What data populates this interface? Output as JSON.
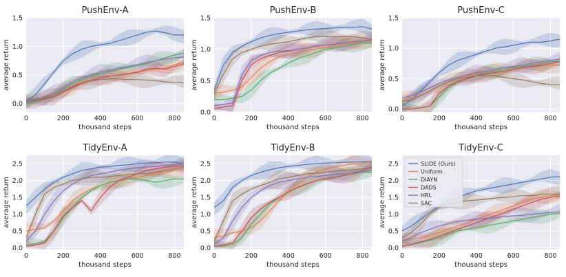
{
  "chart_data": [
    {
      "type": "line",
      "title": "PushEnv-A",
      "xlabel": "thousand steps",
      "ylabel": "average return",
      "xlim": [
        0,
        850
      ],
      "ylim": [
        -0.15,
        1.5
      ],
      "xticks": [
        "0",
        "200",
        "400",
        "600",
        "800"
      ],
      "yticks": [
        "0.0",
        "0.5",
        "1.0",
        "1.5"
      ],
      "x": [
        0,
        50,
        100,
        150,
        200,
        250,
        300,
        350,
        400,
        450,
        500,
        550,
        600,
        650,
        700,
        750,
        800,
        850
      ],
      "series": [
        {
          "name": "SLIDE (Ours)",
          "values": [
            0.05,
            0.15,
            0.35,
            0.55,
            0.75,
            0.87,
            0.95,
            1.0,
            1.03,
            1.05,
            1.1,
            1.15,
            1.2,
            1.25,
            1.27,
            1.24,
            1.2,
            1.2
          ]
        },
        {
          "name": "Uniform",
          "values": [
            0.02,
            0.05,
            0.1,
            0.15,
            0.22,
            0.3,
            0.38,
            0.42,
            0.45,
            0.48,
            0.5,
            0.52,
            0.55,
            0.58,
            0.6,
            0.62,
            0.68,
            0.72
          ]
        },
        {
          "name": "DIAYN",
          "values": [
            0.0,
            0.03,
            0.08,
            0.15,
            0.25,
            0.35,
            0.42,
            0.48,
            0.52,
            0.56,
            0.6,
            0.63,
            0.66,
            0.7,
            0.75,
            0.8,
            0.85,
            0.88
          ]
        },
        {
          "name": "DADS",
          "values": [
            0.02,
            0.05,
            0.08,
            0.12,
            0.2,
            0.28,
            0.35,
            0.4,
            0.45,
            0.48,
            0.5,
            0.52,
            0.55,
            0.6,
            0.62,
            0.6,
            0.65,
            0.7
          ]
        },
        {
          "name": "HRL",
          "values": [
            0.05,
            0.08,
            0.12,
            0.18,
            0.28,
            0.38,
            0.45,
            0.5,
            0.55,
            0.58,
            0.62,
            0.65,
            0.68,
            0.72,
            0.75,
            0.78,
            0.8,
            0.82
          ]
        },
        {
          "name": "SAC",
          "values": [
            0.02,
            0.06,
            0.1,
            0.15,
            0.22,
            0.3,
            0.36,
            0.4,
            0.42,
            0.43,
            0.43,
            0.42,
            0.42,
            0.41,
            0.4,
            0.38,
            0.37,
            0.36
          ]
        }
      ]
    },
    {
      "type": "line",
      "title": "PushEnv-B",
      "xlabel": "thousand steps",
      "ylabel": "average return",
      "xlim": [
        0,
        850
      ],
      "ylim": [
        0,
        1.5
      ],
      "xticks": [
        "0",
        "200",
        "400",
        "600",
        "800"
      ],
      "yticks": [
        "0.0",
        "0.5",
        "1.0",
        "1.5"
      ],
      "x": [
        0,
        50,
        100,
        150,
        200,
        250,
        300,
        350,
        400,
        450,
        500,
        550,
        600,
        650,
        700,
        750,
        800,
        850
      ],
      "series": [
        {
          "name": "SLIDE (Ours)",
          "values": [
            0.35,
            0.75,
            0.95,
            1.05,
            1.12,
            1.18,
            1.22,
            1.25,
            1.27,
            1.29,
            1.31,
            1.32,
            1.33,
            1.34,
            1.35,
            1.35,
            1.36,
            1.32
          ]
        },
        {
          "name": "Uniform",
          "values": [
            0.3,
            0.32,
            0.35,
            0.4,
            0.55,
            0.7,
            0.8,
            0.88,
            0.92,
            0.95,
            0.98,
            1.0,
            1.03,
            1.05,
            1.08,
            1.1,
            1.12,
            1.15
          ]
        },
        {
          "name": "DIAYN",
          "values": [
            0.2,
            0.2,
            0.22,
            0.25,
            0.35,
            0.5,
            0.62,
            0.7,
            0.78,
            0.85,
            0.9,
            0.95,
            1.0,
            1.02,
            1.05,
            1.08,
            1.1,
            1.1
          ]
        },
        {
          "name": "DADS",
          "values": [
            0.05,
            0.08,
            0.1,
            0.5,
            0.75,
            0.85,
            0.9,
            0.95,
            0.97,
            1.0,
            1.02,
            1.05,
            1.07,
            1.08,
            1.1,
            1.12,
            1.13,
            1.15
          ]
        },
        {
          "name": "HRL",
          "values": [
            0.1,
            0.12,
            0.15,
            0.6,
            0.82,
            0.9,
            0.95,
            0.97,
            0.98,
            1.0,
            1.02,
            1.05,
            1.07,
            1.08,
            1.1,
            1.12,
            1.13,
            1.15
          ]
        },
        {
          "name": "SAC",
          "values": [
            0.3,
            0.6,
            0.85,
            0.95,
            1.0,
            1.05,
            1.08,
            1.1,
            1.12,
            1.15,
            1.18,
            1.2,
            1.2,
            1.2,
            1.2,
            1.2,
            1.18,
            1.15
          ]
        }
      ]
    },
    {
      "type": "line",
      "title": "PushEnv-C",
      "xlabel": "thousand steps",
      "ylabel": "average return",
      "xlim": [
        0,
        850
      ],
      "ylim": [
        -0.05,
        1.5
      ],
      "xticks": [
        "0",
        "200",
        "400",
        "600",
        "800"
      ],
      "yticks": [
        "0.0",
        "0.5",
        "1.0",
        "1.5"
      ],
      "x": [
        0,
        50,
        100,
        150,
        200,
        250,
        300,
        350,
        400,
        450,
        500,
        550,
        600,
        650,
        700,
        750,
        800,
        850
      ],
      "series": [
        {
          "name": "SLIDE (Ours)",
          "values": [
            0.05,
            0.15,
            0.3,
            0.45,
            0.6,
            0.72,
            0.8,
            0.85,
            0.9,
            0.95,
            1.0,
            1.02,
            1.05,
            1.08,
            1.1,
            1.1,
            1.12,
            1.15
          ]
        },
        {
          "name": "Uniform",
          "values": [
            0.15,
            0.18,
            0.22,
            0.3,
            0.38,
            0.45,
            0.5,
            0.55,
            0.58,
            0.6,
            0.62,
            0.65,
            0.68,
            0.68,
            0.7,
            0.7,
            0.72,
            0.72
          ]
        },
        {
          "name": "DIAYN",
          "values": [
            0.0,
            0.0,
            0.02,
            0.05,
            0.2,
            0.35,
            0.45,
            0.5,
            0.55,
            0.6,
            0.62,
            0.65,
            0.68,
            0.7,
            0.72,
            0.75,
            0.78,
            0.78
          ]
        },
        {
          "name": "DADS",
          "values": [
            0.0,
            0.0,
            0.02,
            0.05,
            0.25,
            0.38,
            0.45,
            0.5,
            0.55,
            0.58,
            0.6,
            0.62,
            0.65,
            0.68,
            0.7,
            0.72,
            0.75,
            0.78
          ]
        },
        {
          "name": "HRL",
          "values": [
            0.18,
            0.22,
            0.28,
            0.35,
            0.42,
            0.48,
            0.52,
            0.56,
            0.6,
            0.62,
            0.65,
            0.68,
            0.7,
            0.72,
            0.75,
            0.78,
            0.8,
            0.82
          ]
        },
        {
          "name": "SAC",
          "values": [
            0.12,
            0.15,
            0.22,
            0.3,
            0.38,
            0.45,
            0.5,
            0.52,
            0.55,
            0.55,
            0.55,
            0.52,
            0.5,
            0.48,
            0.45,
            0.42,
            0.4,
            0.4
          ]
        }
      ]
    },
    {
      "type": "line",
      "title": "TidyEnv-A",
      "xlabel": "thousand steps",
      "ylabel": "average return",
      "xlim": [
        0,
        850
      ],
      "ylim": [
        -0.05,
        2.75
      ],
      "xticks": [
        "0",
        "200",
        "400",
        "600",
        "800"
      ],
      "yticks": [
        "0.0",
        "0.5",
        "1.0",
        "1.5",
        "2.0",
        "2.5"
      ],
      "x": [
        0,
        50,
        100,
        150,
        200,
        250,
        300,
        350,
        400,
        450,
        500,
        550,
        600,
        650,
        700,
        750,
        800,
        850
      ],
      "series": [
        {
          "name": "SLIDE (Ours)",
          "values": [
            1.25,
            1.5,
            1.75,
            1.95,
            2.1,
            2.2,
            2.3,
            2.35,
            2.4,
            2.42,
            2.45,
            2.47,
            2.5,
            2.52,
            2.53,
            2.55,
            2.55,
            2.5
          ]
        },
        {
          "name": "Uniform",
          "values": [
            0.5,
            0.55,
            0.6,
            0.8,
            1.1,
            1.4,
            1.6,
            1.75,
            1.85,
            1.95,
            2.0,
            2.05,
            2.1,
            2.15,
            2.2,
            2.25,
            2.3,
            2.35
          ]
        },
        {
          "name": "DIAYN",
          "values": [
            0.1,
            0.12,
            0.2,
            0.5,
            0.9,
            1.2,
            1.5,
            1.7,
            1.85,
            1.95,
            2.0,
            2.05,
            2.05,
            2.0,
            1.95,
            2.0,
            2.05,
            2.05
          ]
        },
        {
          "name": "DADS",
          "values": [
            0.05,
            0.08,
            0.15,
            0.5,
            0.95,
            1.2,
            1.4,
            1.1,
            1.5,
            1.8,
            2.0,
            2.1,
            2.2,
            2.3,
            2.35,
            2.4,
            2.42,
            2.45
          ]
        },
        {
          "name": "HRL",
          "values": [
            0.2,
            0.5,
            1.0,
            1.4,
            1.7,
            1.9,
            2.05,
            2.15,
            2.2,
            2.25,
            2.3,
            2.35,
            2.38,
            2.4,
            2.42,
            2.45,
            2.48,
            2.5
          ]
        },
        {
          "name": "SAC",
          "values": [
            0.3,
            1.0,
            1.6,
            1.8,
            1.9,
            2.0,
            2.05,
            2.1,
            2.1,
            2.12,
            2.15,
            2.18,
            2.2,
            2.2,
            2.25,
            2.3,
            2.35,
            2.4
          ]
        }
      ]
    },
    {
      "type": "line",
      "title": "TidyEnv-B",
      "xlabel": "thousand steps",
      "ylabel": "average return",
      "xlim": [
        0,
        850
      ],
      "ylim": [
        -0.05,
        2.75
      ],
      "xticks": [
        "0",
        "200",
        "400",
        "600",
        "800"
      ],
      "yticks": [
        "0.0",
        "0.5",
        "1.0",
        "1.5",
        "2.0",
        "2.5"
      ],
      "x": [
        0,
        50,
        100,
        150,
        200,
        250,
        300,
        350,
        400,
        450,
        500,
        550,
        600,
        650,
        700,
        750,
        800,
        850
      ],
      "series": [
        {
          "name": "SLIDE (Ours)",
          "values": [
            1.2,
            1.4,
            1.8,
            2.0,
            2.15,
            2.25,
            2.32,
            2.38,
            2.42,
            2.45,
            2.48,
            2.5,
            2.52,
            2.53,
            2.55,
            2.55,
            2.56,
            2.55
          ]
        },
        {
          "name": "Uniform",
          "values": [
            0.3,
            0.35,
            0.45,
            0.5,
            0.6,
            0.8,
            1.1,
            1.4,
            1.7,
            1.9,
            2.1,
            2.25,
            2.35,
            2.4,
            2.45,
            2.5,
            2.52,
            2.55
          ]
        },
        {
          "name": "DIAYN",
          "values": [
            0.05,
            0.05,
            0.1,
            0.3,
            0.7,
            1.0,
            1.3,
            1.5,
            1.65,
            1.8,
            1.9,
            2.0,
            2.05,
            2.1,
            2.15,
            2.2,
            2.25,
            2.25
          ]
        },
        {
          "name": "DADS",
          "values": [
            0.05,
            0.08,
            0.15,
            0.5,
            0.9,
            1.15,
            1.35,
            1.5,
            1.65,
            1.8,
            1.9,
            2.0,
            2.05,
            2.1,
            2.15,
            2.2,
            2.3,
            2.4
          ]
        },
        {
          "name": "HRL",
          "values": [
            0.1,
            0.3,
            0.8,
            1.2,
            1.5,
            1.7,
            1.85,
            1.95,
            2.0,
            2.05,
            2.1,
            2.12,
            2.15,
            2.18,
            2.2,
            2.25,
            2.28,
            2.3
          ]
        },
        {
          "name": "SAC",
          "values": [
            0.2,
            0.8,
            1.4,
            1.6,
            1.75,
            1.85,
            1.95,
            2.05,
            2.1,
            2.15,
            2.2,
            2.22,
            2.25,
            2.28,
            2.3,
            2.32,
            2.35,
            2.38
          ]
        }
      ]
    },
    {
      "type": "line",
      "title": "TidyEnv-C",
      "xlabel": "thousand steps",
      "ylabel": "average return",
      "xlim": [
        0,
        850
      ],
      "ylim": [
        -0.05,
        2.75
      ],
      "xticks": [
        "0",
        "200",
        "400",
        "600",
        "800"
      ],
      "yticks": [
        "0.0",
        "0.5",
        "1.0",
        "1.5",
        "2.0",
        "2.5"
      ],
      "x": [
        0,
        50,
        100,
        150,
        200,
        250,
        300,
        350,
        400,
        450,
        500,
        550,
        600,
        650,
        700,
        750,
        800,
        850
      ],
      "legend": "upper-left",
      "series": [
        {
          "name": "SLIDE (Ours)",
          "values": [
            0.5,
            0.65,
            0.85,
            1.05,
            1.25,
            1.4,
            1.5,
            1.6,
            1.7,
            1.75,
            1.8,
            1.85,
            1.9,
            1.95,
            2.0,
            2.05,
            2.1,
            2.12
          ]
        },
        {
          "name": "Uniform",
          "values": [
            0.2,
            0.25,
            0.3,
            0.38,
            0.45,
            0.55,
            0.65,
            0.75,
            0.85,
            0.95,
            1.05,
            1.15,
            1.25,
            1.35,
            1.45,
            1.5,
            1.55,
            1.6
          ]
        },
        {
          "name": "DIAYN",
          "values": [
            0.05,
            0.1,
            0.15,
            0.22,
            0.3,
            0.4,
            0.5,
            0.55,
            0.6,
            0.65,
            0.7,
            0.75,
            0.8,
            0.85,
            0.9,
            0.95,
            1.0,
            1.02
          ]
        },
        {
          "name": "DADS",
          "values": [
            0.05,
            0.1,
            0.18,
            0.25,
            0.35,
            0.45,
            0.55,
            0.65,
            0.75,
            0.85,
            0.95,
            1.05,
            1.15,
            1.25,
            1.35,
            1.45,
            1.5,
            1.55
          ]
        },
        {
          "name": "HRL",
          "values": [
            0.2,
            0.3,
            0.45,
            0.55,
            0.65,
            0.72,
            0.78,
            0.82,
            0.85,
            0.88,
            0.9,
            0.93,
            0.95,
            0.97,
            1.0,
            1.02,
            1.05,
            1.08
          ]
        },
        {
          "name": "SAC",
          "values": [
            0.3,
            0.45,
            0.7,
            1.0,
            1.2,
            1.3,
            1.35,
            1.4,
            1.42,
            1.45,
            1.48,
            1.5,
            1.52,
            1.55,
            1.55,
            1.6,
            1.6,
            1.6
          ]
        }
      ]
    }
  ],
  "legend": {
    "entries": [
      "SLIDE (Ours)",
      "Uniform",
      "DIAYN",
      "DADS",
      "HRL",
      "SAC"
    ],
    "colors": [
      "#4c72b0",
      "#dd8452",
      "#55a868",
      "#c44e52",
      "#8172b3",
      "#937860"
    ]
  },
  "style": {
    "plot_bg": "#eaeaf2",
    "grid": "#ffffff"
  }
}
